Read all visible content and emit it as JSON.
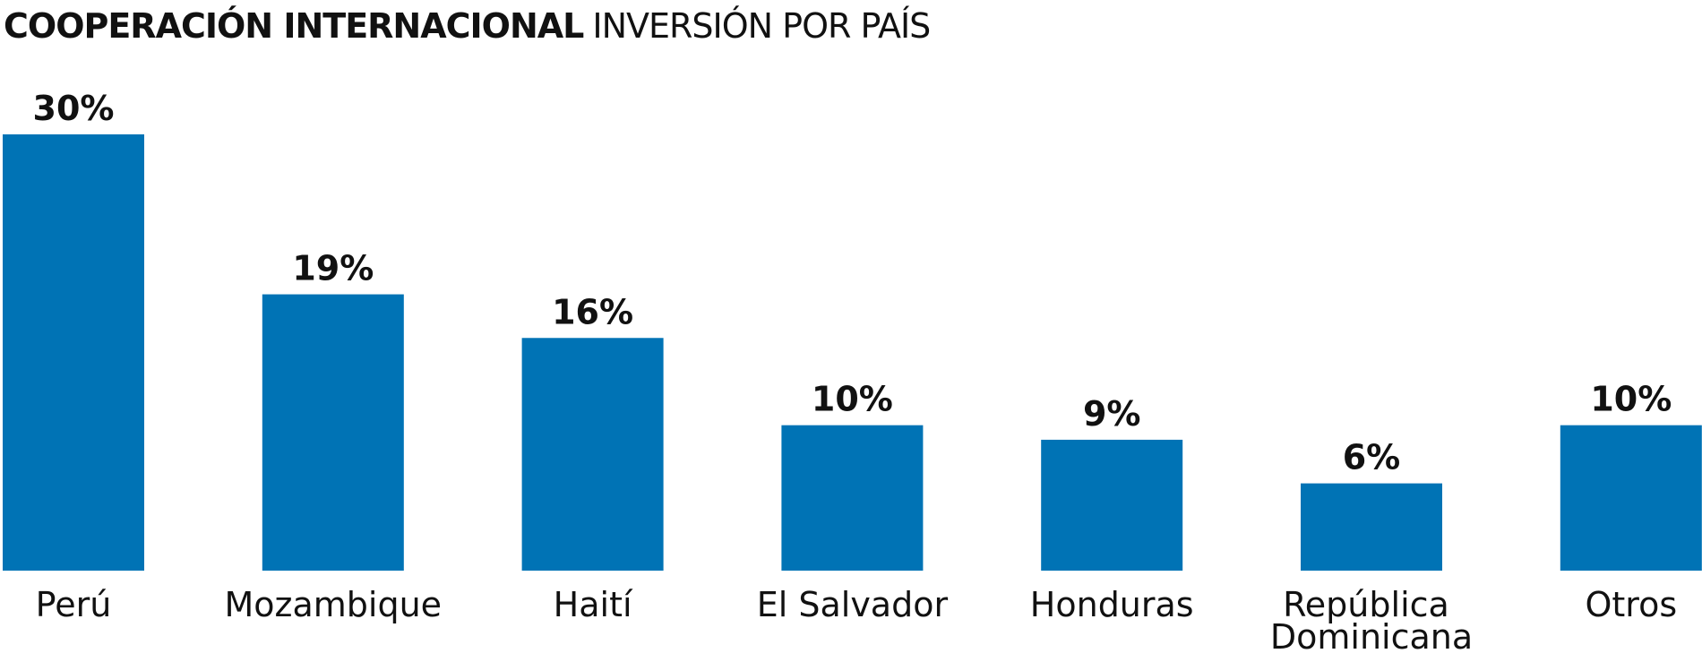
{
  "chart_data": {
    "type": "bar",
    "title": "COOPERACIÓN INTERNACIONAL",
    "subtitle": "INVERSIÓN POR PAÍS",
    "categories": [
      "Perú",
      "Mozambique",
      "Haití",
      "El Salvador",
      "Honduras",
      "República Dominicana",
      "Otros"
    ],
    "values": [
      30,
      19,
      16,
      10,
      9,
      6,
      10
    ],
    "value_labels": [
      "30%",
      "19%",
      "16%",
      "10%",
      "9%",
      "6%",
      "10%"
    ],
    "color": "#0073b5"
  }
}
